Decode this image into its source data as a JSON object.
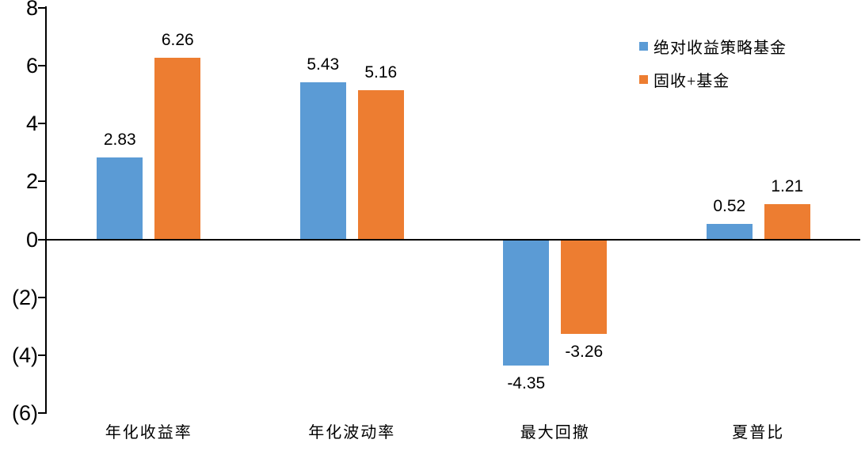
{
  "chart_data": {
    "type": "bar",
    "categories": [
      "年化收益率",
      "年化波动率",
      "最大回撤",
      "夏普比"
    ],
    "series": [
      {
        "name": "绝对收益策略基金",
        "color": "#5B9BD5",
        "values": [
          2.83,
          5.43,
          -4.35,
          0.52
        ]
      },
      {
        "name": "固收+基金",
        "color": "#ED7D31",
        "values": [
          6.26,
          5.16,
          -3.26,
          1.21
        ]
      }
    ],
    "value_labels": [
      [
        "2.83",
        "5.43",
        "-4.35",
        "0.52"
      ],
      [
        "6.26",
        "5.16",
        "-3.26",
        "1.21"
      ]
    ],
    "ylim": [
      -6,
      8
    ],
    "yticks": [
      {
        "value": 8,
        "label": "8"
      },
      {
        "value": 6,
        "label": "6"
      },
      {
        "value": 4,
        "label": "4"
      },
      {
        "value": 2,
        "label": "2"
      },
      {
        "value": 0,
        "label": "0"
      },
      {
        "value": -2,
        "label": "(2)"
      },
      {
        "value": -4,
        "label": "(4)"
      },
      {
        "value": -6,
        "label": "(6)"
      }
    ],
    "grid": false,
    "legend_position": "top-right",
    "colors": {
      "axis": "#000000",
      "text": "#000000",
      "background": "#FFFFFF"
    }
  }
}
